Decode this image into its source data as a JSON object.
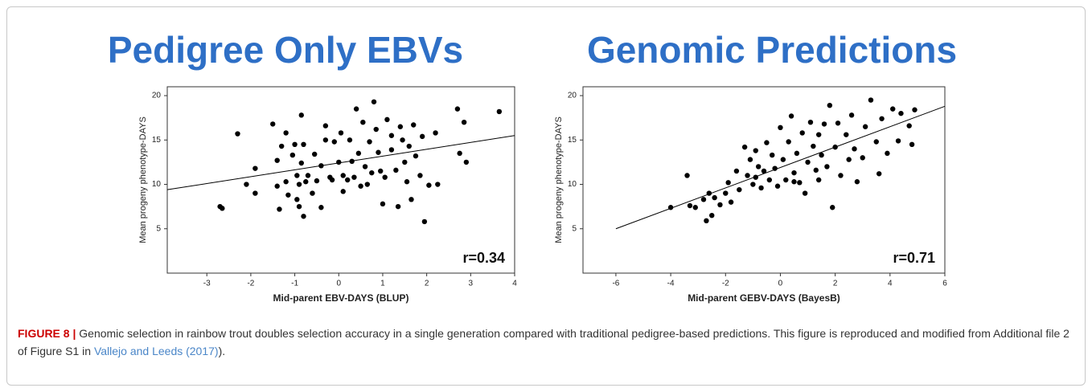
{
  "chart_data": [
    {
      "type": "scatter",
      "title": "Pedigree Only EBVs",
      "xlabel": "Mid-parent EBV-DAYS (BLUP)",
      "ylabel": "Mean progeny phenotype-DAYS",
      "annotation": "r=0.34",
      "color": "#000000",
      "xlim": [
        -3.9,
        4
      ],
      "xticks": [
        -3,
        -2,
        -1,
        0,
        1,
        2,
        3,
        4
      ],
      "ylim": [
        0,
        21
      ],
      "yticks": [
        5,
        10,
        15,
        20
      ],
      "x": [
        -2.7,
        -2.65,
        -2.3,
        -2.1,
        -1.9,
        -1.9,
        -1.5,
        -1.4,
        -1.4,
        -1.35,
        -1.3,
        -1.2,
        -1.2,
        -1.15,
        -1.05,
        -1,
        -0.95,
        -0.95,
        -0.9,
        -0.9,
        -0.85,
        -0.85,
        -0.8,
        -0.8,
        -0.75,
        -0.7,
        -0.6,
        -0.55,
        -0.5,
        -0.4,
        -0.4,
        -0.3,
        -0.3,
        -0.15,
        -0.1,
        0,
        0.05,
        0.1,
        0.1,
        0.2,
        0.25,
        0.3,
        0.35,
        0.4,
        0.45,
        0.5,
        0.55,
        0.6,
        0.7,
        0.75,
        0.8,
        0.85,
        0.9,
        0.95,
        1,
        1.05,
        1.1,
        1.2,
        1.3,
        1.35,
        1.4,
        1.45,
        1.5,
        1.55,
        1.6,
        1.65,
        1.7,
        1.75,
        1.85,
        1.9,
        1.95,
        2.05,
        2.2,
        2.25,
        2.7,
        2.75,
        2.85,
        2.9,
        3.65,
        0.65,
        -0.2,
        1.2
      ],
      "values": [
        7.5,
        7.3,
        15.7,
        10,
        11.8,
        9,
        16.8,
        12.7,
        9.8,
        7.2,
        14.3,
        15.8,
        10.3,
        8.8,
        13.3,
        14.5,
        11,
        8.3,
        10,
        7.5,
        17.8,
        12.4,
        14.5,
        6.4,
        10.3,
        11,
        9,
        13.4,
        10.4,
        12.1,
        7.4,
        16.6,
        15,
        10.5,
        14.8,
        12.5,
        15.8,
        11,
        9.2,
        10.5,
        15,
        12.6,
        10.8,
        18.5,
        13.5,
        9.8,
        17,
        12,
        14.8,
        11.3,
        19.3,
        16.2,
        13.6,
        11.5,
        7.8,
        10.8,
        17.3,
        13.9,
        11.6,
        7.5,
        16.5,
        15,
        12.5,
        10.3,
        14.3,
        8.3,
        16.7,
        13.2,
        11,
        15.4,
        5.8,
        9.9,
        15.8,
        10,
        18.5,
        13.5,
        17,
        12.5,
        18.2,
        10,
        10.8,
        15.5
      ],
      "trend_line": {
        "x": [
          -3.9,
          4
        ],
        "y": [
          9.4,
          15.5
        ]
      }
    },
    {
      "type": "scatter",
      "title": "Genomic Predictions",
      "xlabel": "Mid-parent GEBV-DAYS (BayesB)",
      "ylabel": "Mean progeny phenotype-DAYS",
      "annotation": "r=0.71",
      "color": "#000000",
      "xlim": [
        -7.2,
        6
      ],
      "xticks": [
        -6,
        -4,
        -2,
        0,
        2,
        4,
        6
      ],
      "ylim": [
        0,
        21
      ],
      "yticks": [
        5,
        10,
        15,
        20
      ],
      "x": [
        -4,
        -3.4,
        -3.3,
        -3.1,
        -2.8,
        -2.7,
        -2.6,
        -2.5,
        -2.4,
        -2.2,
        -2,
        -1.9,
        -1.8,
        -1.6,
        -1.5,
        -1.3,
        -1.2,
        -1.1,
        -1,
        -0.9,
        -0.8,
        -0.7,
        -0.6,
        -0.5,
        -0.4,
        -0.3,
        -0.2,
        -0.1,
        0,
        0.1,
        0.2,
        0.3,
        0.4,
        0.5,
        0.6,
        0.7,
        0.8,
        0.9,
        1,
        1.1,
        1.2,
        1.3,
        1.4,
        1.5,
        1.6,
        1.7,
        1.8,
        1.9,
        2,
        2.1,
        2.2,
        2.4,
        2.5,
        2.7,
        2.8,
        3,
        3.1,
        3.3,
        3.5,
        3.6,
        3.7,
        3.9,
        4.1,
        4.3,
        4.4,
        4.7,
        4.8,
        4.9,
        0.5,
        -0.9,
        1.4,
        2.6
      ],
      "values": [
        7.4,
        11,
        7.6,
        7.4,
        8.3,
        5.9,
        9,
        6.5,
        8.5,
        7.7,
        9,
        10.2,
        8,
        11.5,
        9.4,
        14.2,
        11,
        12.8,
        10,
        13.8,
        12,
        9.6,
        11.5,
        14.7,
        10.5,
        13.3,
        11.8,
        9.8,
        16.4,
        12.8,
        10.5,
        14.8,
        17.7,
        11.3,
        13.5,
        10.2,
        15.8,
        9,
        12.5,
        17,
        14.3,
        11.6,
        15.6,
        13.3,
        16.8,
        12,
        18.9,
        7.4,
        14.2,
        16.9,
        11,
        15.6,
        12.8,
        14,
        10.3,
        13,
        16.5,
        19.5,
        14.8,
        11.2,
        17.4,
        13.5,
        18.5,
        14.9,
        18,
        16.6,
        14.5,
        18.4,
        10.3,
        10.8,
        10.5,
        17.8
      ],
      "trend_line": {
        "x": [
          -6,
          6
        ],
        "y": [
          5,
          18.8
        ]
      }
    }
  ],
  "caption": {
    "label": "FIGURE 8 |",
    "text": "Genomic selection in rainbow trout doubles selection accuracy in a single generation compared with traditional pedigree-based predictions. This figure is reproduced and modified from Additional file 2 of Figure S1 in",
    "link": "Vallejo and Leeds (2017)",
    "tail": ")."
  }
}
